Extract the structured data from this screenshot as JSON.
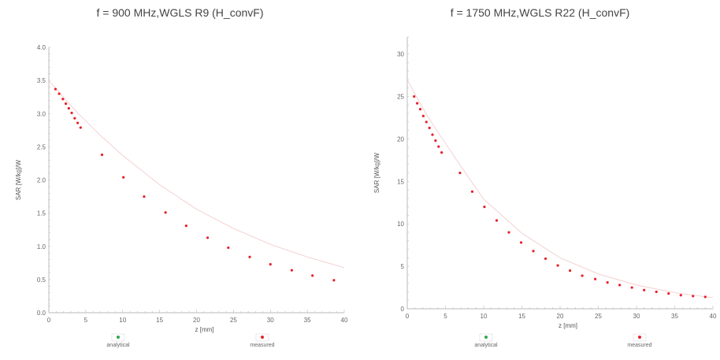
{
  "charts": [
    {
      "title": "f = 900 MHz,WGLS R9 (H_convF)"
    },
    {
      "title": "f = 1750 MHz,WGLS R22 (H_convF)"
    }
  ],
  "colors": {
    "measured": "#e8202a",
    "analytical": "#2fa84f",
    "axis": "#bbbbbb",
    "text": "#666666"
  },
  "chart_data": [
    {
      "type": "scatter",
      "title": "f = 900 MHz,WGLS R9 (H_convF)",
      "xlabel": "z [mm]",
      "ylabel": "SAR [W/kg]/W",
      "xlim": [
        0,
        40
      ],
      "ylim": [
        0,
        4.0
      ],
      "xticks": [
        0,
        5,
        10,
        15,
        20,
        25,
        30,
        35,
        40
      ],
      "yticks": [
        0.0,
        0.5,
        1.0,
        1.5,
        2.0,
        2.5,
        3.0,
        3.5,
        4.0
      ],
      "ytick_labels": [
        "0.0",
        "0.5",
        "1.0",
        "1.5",
        "2.0",
        "2.5",
        "3.0",
        "3.5",
        "4.0"
      ],
      "grid": false,
      "legend": "bottom",
      "series": [
        {
          "name": "analytical",
          "x": [
            0,
            1,
            2,
            3,
            4,
            5,
            7,
            10,
            15,
            20,
            25,
            30,
            35,
            40
          ],
          "y": [
            3.5,
            3.37,
            3.24,
            3.12,
            3.0,
            2.89,
            2.67,
            2.37,
            1.93,
            1.56,
            1.27,
            1.03,
            0.84,
            0.68
          ]
        },
        {
          "name": "measured",
          "x": [
            0.9,
            1.4,
            1.9,
            2.3,
            2.7,
            3.1,
            3.5,
            3.9,
            4.3,
            7.2,
            10.1,
            12.9,
            15.8,
            18.6,
            21.5,
            24.3,
            27.2,
            30.0,
            32.9,
            35.7,
            38.6
          ],
          "y": [
            3.37,
            3.3,
            3.22,
            3.15,
            3.08,
            3.01,
            2.93,
            2.86,
            2.79,
            2.38,
            2.04,
            1.75,
            1.51,
            1.31,
            1.13,
            0.98,
            0.84,
            0.73,
            0.64,
            0.56,
            0.49
          ]
        }
      ]
    },
    {
      "type": "scatter",
      "title": "f = 1750 MHz,WGLS R22 (H_convF)",
      "xlabel": "z [mm]",
      "ylabel": "SAR [W/kg]/W",
      "xlim": [
        0,
        40
      ],
      "ylim": [
        0,
        32
      ],
      "xticks": [
        0,
        5,
        10,
        15,
        20,
        25,
        30,
        35,
        40
      ],
      "yticks": [
        0,
        5,
        10,
        15,
        20,
        25,
        30
      ],
      "ytick_labels": [
        "0",
        "5",
        "10",
        "15",
        "20",
        "25",
        "30"
      ],
      "grid": false,
      "legend": "bottom",
      "series": [
        {
          "name": "analytical",
          "x": [
            0,
            1,
            2,
            3,
            4,
            5,
            7,
            10,
            15,
            20,
            25,
            30,
            35,
            40
          ],
          "y": [
            27.0,
            25.3,
            23.7,
            22.2,
            20.8,
            19.5,
            16.8,
            12.9,
            8.9,
            6.0,
            4.1,
            2.8,
            1.9,
            1.3
          ]
        },
        {
          "name": "measured",
          "x": [
            0.9,
            1.3,
            1.7,
            2.1,
            2.5,
            2.9,
            3.3,
            3.7,
            4.1,
            4.5,
            6.9,
            8.5,
            10.1,
            11.7,
            13.3,
            14.9,
            16.5,
            18.1,
            19.7,
            21.3,
            22.9,
            24.6,
            26.2,
            27.8,
            29.4,
            31.0,
            32.6,
            34.2,
            35.8,
            37.4,
            39.0
          ],
          "y": [
            25.0,
            24.2,
            23.5,
            22.7,
            22.0,
            21.3,
            20.5,
            19.8,
            19.1,
            18.4,
            16.0,
            13.8,
            12.0,
            10.4,
            9.0,
            7.8,
            6.8,
            5.9,
            5.1,
            4.5,
            3.9,
            3.5,
            3.1,
            2.8,
            2.5,
            2.2,
            2.0,
            1.8,
            1.6,
            1.5,
            1.4
          ]
        }
      ]
    }
  ]
}
